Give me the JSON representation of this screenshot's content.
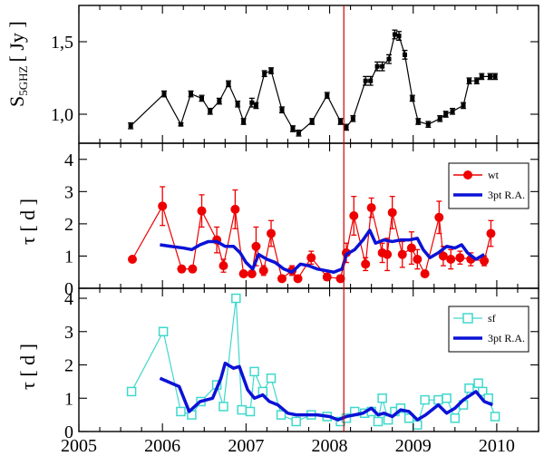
{
  "chart_data": [
    {
      "type": "line",
      "panel": "top",
      "title": "",
      "xlabel": "",
      "ylabel_main": "S",
      "ylabel_sub": "5GHZ",
      "ylabel_unit": "[ Jy ]",
      "xlim": [
        2005,
        2010.5
      ],
      "ylim": [
        0.8,
        1.75
      ],
      "yticks": [
        1.0,
        1.5
      ],
      "ytick_labels": [
        "1,0",
        "1,5"
      ],
      "series": [
        {
          "name": "flux",
          "color": "#000000",
          "marker": "square",
          "x": [
            2005.62,
            2006.02,
            2006.22,
            2006.34,
            2006.47,
            2006.57,
            2006.68,
            2006.79,
            2006.9,
            2006.97,
            2007.07,
            2007.12,
            2007.22,
            2007.3,
            2007.43,
            2007.56,
            2007.63,
            2007.79,
            2007.97,
            2008.13,
            2008.2,
            2008.28,
            2008.43,
            2008.49,
            2008.57,
            2008.63,
            2008.71,
            2008.78,
            2008.83,
            2008.9,
            2008.99,
            2009.06,
            2009.18,
            2009.32,
            2009.39,
            2009.47,
            2009.6,
            2009.67,
            2009.76,
            2009.82,
            2009.92,
            2009.98
          ],
          "y": [
            0.92,
            1.14,
            0.93,
            1.14,
            1.11,
            1.02,
            1.09,
            1.21,
            1.07,
            0.95,
            1.08,
            1.06,
            1.28,
            1.3,
            1.03,
            0.9,
            0.87,
            0.95,
            1.13,
            0.95,
            0.91,
            0.97,
            1.23,
            1.23,
            1.33,
            1.33,
            1.38,
            1.55,
            1.54,
            1.41,
            1.11,
            0.95,
            0.93,
            0.97,
            1.0,
            1.02,
            1.06,
            1.23,
            1.23,
            1.26,
            1.26,
            1.26
          ],
          "yerr": [
            0.02,
            0.02,
            0.01,
            0.02,
            0.02,
            0.02,
            0.02,
            0.02,
            0.02,
            0.02,
            0.03,
            0.02,
            0.02,
            0.02,
            0.02,
            0.02,
            0.02,
            0.02,
            0.02,
            0.02,
            0.02,
            0.02,
            0.03,
            0.03,
            0.03,
            0.03,
            0.03,
            0.03,
            0.03,
            0.03,
            0.02,
            0.02,
            0.02,
            0.02,
            0.02,
            0.02,
            0.02,
            0.02,
            0.02,
            0.02,
            0.02,
            0.02
          ]
        }
      ],
      "vline_x": 2008.17
    },
    {
      "type": "line",
      "panel": "middle",
      "xlabel": "",
      "ylabel": "τ [ d ]",
      "xlim": [
        2005,
        2010.5
      ],
      "ylim": [
        0,
        4.5
      ],
      "yticks": [
        0,
        1,
        2,
        3,
        4
      ],
      "ytick_labels": [
        "0",
        "1",
        "2",
        "3",
        "4"
      ],
      "legend": {
        "position": "top-right",
        "entries": [
          "wt",
          "3pt R.A."
        ]
      },
      "series": [
        {
          "name": "wt",
          "color": "#ee0000",
          "marker": "circle",
          "x": [
            2005.64,
            2006.0,
            2006.23,
            2006.36,
            2006.47,
            2006.65,
            2006.73,
            2006.87,
            2006.97,
            2007.07,
            2007.12,
            2007.21,
            2007.3,
            2007.43,
            2007.55,
            2007.62,
            2007.78,
            2007.97,
            2008.13,
            2008.2,
            2008.29,
            2008.43,
            2008.5,
            2008.63,
            2008.69,
            2008.75,
            2008.87,
            2008.98,
            2009.05,
            2009.14,
            2009.31,
            2009.36,
            2009.45,
            2009.56,
            2009.69,
            2009.85,
            2009.93
          ],
          "y": [
            0.9,
            2.55,
            0.6,
            0.6,
            2.4,
            1.5,
            0.7,
            2.45,
            0.45,
            0.45,
            1.3,
            0.55,
            1.7,
            0.3,
            0.55,
            0.3,
            0.95,
            0.35,
            0.3,
            1.1,
            2.25,
            0.75,
            2.5,
            1.1,
            1.05,
            2.35,
            1.05,
            1.25,
            0.9,
            0.45,
            2.2,
            1.0,
            0.9,
            0.95,
            0.9,
            0.85,
            1.7
          ],
          "yerr": [
            0.05,
            0.6,
            0.1,
            0.1,
            0.5,
            0.4,
            0.2,
            0.6,
            0.1,
            0.1,
            0.6,
            0.15,
            0.4,
            0.1,
            0.15,
            0.1,
            0.2,
            0.1,
            0.1,
            0.3,
            0.6,
            0.2,
            0.3,
            0.3,
            0.5,
            0.5,
            0.4,
            0.5,
            0.3,
            0.1,
            0.5,
            0.3,
            0.3,
            0.2,
            0.2,
            0.15,
            0.4
          ]
        },
        {
          "name": "3pt R.A.",
          "color": "#0b12d6",
          "marker": "none",
          "x": [
            2005.97,
            2006.1,
            2006.25,
            2006.35,
            2006.45,
            2006.55,
            2006.65,
            2006.75,
            2006.85,
            2006.93,
            2007.0,
            2007.08,
            2007.15,
            2007.25,
            2007.35,
            2007.45,
            2007.55,
            2007.65,
            2007.75,
            2007.85,
            2007.95,
            2008.05,
            2008.15,
            2008.2,
            2008.3,
            2008.4,
            2008.48,
            2008.55,
            2008.65,
            2008.75,
            2008.85,
            2008.95,
            2009.05,
            2009.12,
            2009.2,
            2009.3,
            2009.4,
            2009.5,
            2009.58,
            2009.65,
            2009.75,
            2009.85
          ],
          "y": [
            1.35,
            1.3,
            1.25,
            1.2,
            1.35,
            1.45,
            1.45,
            1.3,
            1.3,
            1.1,
            0.8,
            0.6,
            1.05,
            0.9,
            0.8,
            0.6,
            0.5,
            0.75,
            0.7,
            0.6,
            0.55,
            0.5,
            0.6,
            1.05,
            1.2,
            1.5,
            1.8,
            1.4,
            1.5,
            1.45,
            1.5,
            1.5,
            1.55,
            1.2,
            0.95,
            1.1,
            1.3,
            1.25,
            1.35,
            1.1,
            0.9,
            1.05
          ]
        }
      ]
    },
    {
      "type": "line",
      "panel": "bottom",
      "xlabel": "",
      "ylabel": "τ [ d ]",
      "xlim": [
        2005,
        2010.5
      ],
      "ylim": [
        0,
        4.3
      ],
      "xticks": [
        2005,
        2006,
        2007,
        2008,
        2009,
        2010
      ],
      "xtick_labels": [
        "2005",
        "2006",
        "2007",
        "2008",
        "2009",
        "2010"
      ],
      "yticks": [
        0,
        1,
        2,
        3,
        4
      ],
      "ytick_labels": [
        "0",
        "1",
        "2",
        "3",
        "4"
      ],
      "legend": {
        "position": "top-right",
        "entries": [
          "sf",
          "3pt R.A."
        ]
      },
      "series": [
        {
          "name": "sf",
          "color": "#40d8cc",
          "marker": "open-square",
          "x": [
            2005.63,
            2006.01,
            2006.22,
            2006.35,
            2006.46,
            2006.65,
            2006.73,
            2006.88,
            2006.95,
            2007.05,
            2007.1,
            2007.2,
            2007.3,
            2007.42,
            2007.6,
            2007.78,
            2007.97,
            2008.13,
            2008.2,
            2008.3,
            2008.42,
            2008.5,
            2008.58,
            2008.63,
            2008.7,
            2008.78,
            2008.85,
            2008.95,
            2009.05,
            2009.14,
            2009.3,
            2009.4,
            2009.5,
            2009.6,
            2009.67,
            2009.78,
            2009.83,
            2009.9,
            2009.98
          ],
          "y": [
            1.2,
            3.0,
            0.6,
            0.5,
            0.9,
            1.4,
            0.75,
            4.0,
            0.65,
            0.6,
            1.8,
            1.2,
            1.6,
            0.5,
            0.3,
            0.5,
            0.45,
            0.3,
            0.4,
            0.6,
            0.55,
            0.6,
            0.3,
            1.0,
            0.35,
            0.6,
            0.7,
            0.4,
            0.2,
            0.95,
            0.95,
            1.0,
            0.4,
            0.8,
            1.3,
            1.45,
            1.2,
            1.0,
            0.45
          ]
        },
        {
          "name": "3pt R.A.",
          "color": "#0b12d6",
          "marker": "none",
          "x": [
            2005.97,
            2006.2,
            2006.32,
            2006.45,
            2006.6,
            2006.7,
            2006.75,
            2006.85,
            2006.92,
            2007.02,
            2007.1,
            2007.2,
            2007.28,
            2007.38,
            2007.5,
            2007.6,
            2007.7,
            2007.85,
            2008.0,
            2008.1,
            2008.2,
            2008.3,
            2008.4,
            2008.5,
            2008.58,
            2008.65,
            2008.75,
            2008.85,
            2008.95,
            2009.05,
            2009.15,
            2009.3,
            2009.4,
            2009.5,
            2009.6,
            2009.75,
            2009.85,
            2009.95
          ],
          "y": [
            1.6,
            1.35,
            0.6,
            0.9,
            1.0,
            1.6,
            2.05,
            1.9,
            1.95,
            1.25,
            1.0,
            1.1,
            0.9,
            0.8,
            0.55,
            0.5,
            0.5,
            0.5,
            0.45,
            0.35,
            0.45,
            0.5,
            0.55,
            0.7,
            0.5,
            0.55,
            0.45,
            0.65,
            0.6,
            0.35,
            0.5,
            0.8,
            0.55,
            0.7,
            0.95,
            1.2,
            0.9,
            0.8
          ]
        }
      ]
    }
  ]
}
